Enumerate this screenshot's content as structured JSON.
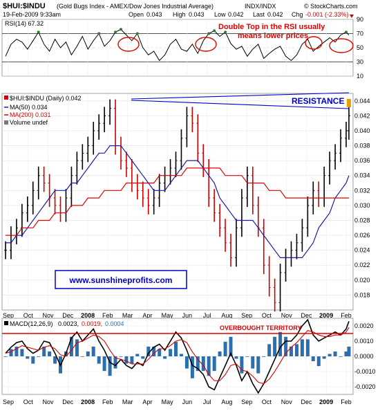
{
  "header": {
    "symbol": "$HUI:$INDU",
    "description": "(Gold Bugs Index - AMEX/Dow Jones Industrial Average)",
    "exchange": "INDX/INDX",
    "date": "19-Feb-2009 9:33am",
    "open_label": "Open",
    "open": "0.043",
    "high_label": "High",
    "high": "0.043",
    "low_label": "Low",
    "low": "0.042",
    "last_label": "Last",
    "last": "0.042",
    "chg_label": "Chg",
    "chg": "-0.001 (-2.33%)",
    "credit": "© StockCharts.com"
  },
  "colors": {
    "price_up": "#000000",
    "price_down": "#cc0000",
    "ma50": "#1a1aa8",
    "ma200": "#dd0000",
    "annotation": "#dd0000",
    "resistance": "#0000cc",
    "macd_hist": "#2a6fb0"
  },
  "rsi_panel": {
    "legend": "RSI(14) 67.32",
    "annotation_line1": "Double Top in the RSI usually",
    "annotation_line2": "means lower prices",
    "y_ticks": [
      "90",
      "70",
      "50",
      "30",
      "10"
    ]
  },
  "price_panel": {
    "legend_title": "$HUI:$INDU (Daily) 0.042",
    "legend_ma50": "MA(50) 0.034",
    "legend_ma200": "MA(200) 0.031",
    "legend_volume": "Volume undef",
    "resistance_label": "RESISTANCE",
    "website": "www.sunshineprofits.com",
    "y_ticks": [
      "0.044",
      "0.042",
      "0.040",
      "0.038",
      "0.036",
      "0.034",
      "0.032",
      "0.030",
      "0.028",
      "0.026",
      "0.024",
      "0.022",
      "0.020",
      "0.018"
    ]
  },
  "macd_panel": {
    "legend_prefix": "MACD(12,26,9)",
    "macd_value": "0.0023,",
    "signal_value": "0.0019,",
    "hist_value": "0.0004",
    "annotation": "OVERBOUGHT TERRITORY",
    "y_ticks": [
      "0.0020",
      "0.0010",
      "0.0000",
      "-0.0010",
      "-0.0020"
    ]
  },
  "x_axis": {
    "labels": [
      "Sep",
      "Oct",
      "Nov",
      "Dec",
      "2008",
      "Feb",
      "Mar",
      "Apr",
      "May",
      "Jun",
      "Jul",
      "Aug",
      "Sep",
      "Oct",
      "Nov",
      "Dec",
      "2009",
      "Feb"
    ]
  },
  "chart_data": [
    {
      "type": "line",
      "title": "RSI(14) 67.32",
      "ylim": [
        10,
        90
      ],
      "x": [
        0,
        8,
        16,
        24,
        32,
        40,
        48,
        56,
        64,
        72,
        80,
        88,
        96,
        104,
        112,
        120,
        128,
        136,
        144,
        152,
        160,
        168,
        176,
        184,
        192,
        200,
        208,
        216,
        224,
        232,
        240,
        248,
        256,
        264,
        272,
        280,
        288,
        296,
        304,
        312,
        320,
        328,
        336,
        344,
        352,
        360,
        368,
        376,
        384,
        392,
        400,
        408,
        416,
        424,
        432,
        440,
        448,
        456,
        464,
        472,
        480,
        488,
        496,
        500
      ],
      "values": [
        38,
        55,
        62,
        58,
        48,
        60,
        72,
        55,
        45,
        62,
        50,
        58,
        40,
        52,
        66,
        48,
        60,
        70,
        52,
        60,
        72,
        76,
        68,
        60,
        70,
        50,
        40,
        45,
        32,
        40,
        55,
        62,
        48,
        45,
        55,
        42,
        60,
        70,
        74,
        66,
        72,
        56,
        48,
        52,
        38,
        48,
        55,
        35,
        42,
        48,
        52,
        38,
        32,
        40,
        55,
        62,
        45,
        52,
        58,
        64,
        58,
        68,
        72,
        68
      ],
      "series": [
        {
          "name": "RSI(14)",
          "values": [
            38,
            55,
            62,
            58,
            48,
            60,
            72,
            55,
            45,
            62,
            50,
            58,
            40,
            52,
            66,
            48,
            60,
            70,
            52,
            60,
            72,
            76,
            68,
            60,
            70,
            50,
            40,
            45,
            32,
            40,
            55,
            62,
            48,
            45,
            55,
            42,
            60,
            70,
            74,
            66,
            72,
            56,
            48,
            52,
            38,
            48,
            55,
            35,
            42,
            48,
            52,
            38,
            32,
            40,
            55,
            62,
            45,
            52,
            58,
            64,
            58,
            68,
            72,
            68
          ]
        }
      ]
    },
    {
      "type": "line",
      "title": "$HUI:$INDU (Daily) 0.042",
      "ylim": [
        0.016,
        0.045
      ],
      "x": [
        0,
        8,
        16,
        24,
        32,
        40,
        48,
        56,
        64,
        72,
        80,
        88,
        96,
        104,
        112,
        120,
        128,
        136,
        144,
        152,
        160,
        168,
        176,
        184,
        192,
        200,
        208,
        216,
        224,
        232,
        240,
        248,
        256,
        264,
        272,
        280,
        288,
        296,
        304,
        312,
        320,
        328,
        336,
        344,
        352,
        360,
        368,
        376,
        384,
        392,
        400,
        408,
        416,
        424,
        432,
        440,
        448,
        456,
        464,
        472,
        480,
        488,
        496,
        500
      ],
      "series": [
        {
          "name": "$HUI:$INDU",
          "values": [
            0.024,
            0.026,
            0.027,
            0.029,
            0.03,
            0.032,
            0.034,
            0.033,
            0.031,
            0.03,
            0.029,
            0.031,
            0.034,
            0.036,
            0.037,
            0.038,
            0.04,
            0.041,
            0.042,
            0.043,
            0.038,
            0.036,
            0.035,
            0.033,
            0.032,
            0.031,
            0.03,
            0.031,
            0.033,
            0.034,
            0.035,
            0.036,
            0.039,
            0.042,
            0.041,
            0.037,
            0.035,
            0.031,
            0.029,
            0.027,
            0.025,
            0.023,
            0.027,
            0.031,
            0.034,
            0.03,
            0.027,
            0.022,
            0.019,
            0.017,
            0.021,
            0.023,
            0.024,
            0.025,
            0.027,
            0.03,
            0.032,
            0.031,
            0.034,
            0.036,
            0.037,
            0.039,
            0.04,
            0.042
          ]
        },
        {
          "name": "MA(50)",
          "values": [
            0.025,
            0.025,
            0.026,
            0.026,
            0.027,
            0.028,
            0.029,
            0.03,
            0.031,
            0.032,
            0.032,
            0.032,
            0.033,
            0.033,
            0.034,
            0.035,
            0.036,
            0.037,
            0.037,
            0.038,
            0.038,
            0.038,
            0.037,
            0.036,
            0.035,
            0.034,
            0.033,
            0.032,
            0.032,
            0.032,
            0.033,
            0.034,
            0.035,
            0.036,
            0.036,
            0.036,
            0.035,
            0.034,
            0.033,
            0.031,
            0.03,
            0.029,
            0.028,
            0.028,
            0.028,
            0.028,
            0.027,
            0.026,
            0.025,
            0.024,
            0.023,
            0.023,
            0.023,
            0.023,
            0.023,
            0.024,
            0.025,
            0.027,
            0.028,
            0.029,
            0.031,
            0.032,
            0.033,
            0.034
          ]
        },
        {
          "name": "MA(200)",
          "values": [
            0.026,
            0.026,
            0.026,
            0.027,
            0.027,
            0.027,
            0.028,
            0.028,
            0.028,
            0.029,
            0.029,
            0.029,
            0.03,
            0.03,
            0.03,
            0.031,
            0.031,
            0.031,
            0.032,
            0.032,
            0.032,
            0.032,
            0.033,
            0.033,
            0.033,
            0.033,
            0.033,
            0.033,
            0.034,
            0.034,
            0.034,
            0.034,
            0.034,
            0.035,
            0.035,
            0.035,
            0.035,
            0.035,
            0.035,
            0.035,
            0.034,
            0.034,
            0.034,
            0.034,
            0.033,
            0.033,
            0.033,
            0.033,
            0.032,
            0.032,
            0.032,
            0.031,
            0.031,
            0.031,
            0.031,
            0.031,
            0.031,
            0.031,
            0.031,
            0.031,
            0.031,
            0.031,
            0.031,
            0.031
          ]
        }
      ]
    },
    {
      "type": "line",
      "title": "MACD(12,26,9)",
      "ylim": [
        -0.0025,
        0.0025
      ],
      "x": [
        0,
        8,
        16,
        24,
        32,
        40,
        48,
        56,
        64,
        72,
        80,
        88,
        96,
        104,
        112,
        120,
        128,
        136,
        144,
        152,
        160,
        168,
        176,
        184,
        192,
        200,
        208,
        216,
        224,
        232,
        240,
        248,
        256,
        264,
        272,
        280,
        288,
        296,
        304,
        312,
        320,
        328,
        336,
        344,
        352,
        360,
        368,
        376,
        384,
        392,
        400,
        408,
        416,
        424,
        432,
        440,
        448,
        456,
        464,
        472,
        480,
        488,
        496,
        500
      ],
      "series": [
        {
          "name": "MACD",
          "values": [
            0.0002,
            0.0006,
            0.0009,
            0.001,
            0.0005,
            0.0002,
            0.0004,
            0.001,
            0.0009,
            0.0002,
            -0.0006,
            0.0002,
            0.0012,
            0.0016,
            0.001,
            0.0014,
            0.0018,
            0.001,
            0.0004,
            -0.0004,
            -0.0006,
            -0.0002,
            -0.0006,
            -0.0008,
            -0.0004,
            -0.0006,
            0.0002,
            0.0006,
            0.0008,
            0.0004,
            0.001,
            0.0016,
            0.0012,
            0.0004,
            -0.0006,
            -0.0008,
            -0.0012,
            -0.002,
            -0.0022,
            -0.0014,
            -0.0006,
            0.0002,
            -0.0006,
            -0.0016,
            -0.001,
            -0.0018,
            -0.0024,
            -0.0018,
            -0.001,
            -0.0002,
            0.0006,
            0.001,
            0.001,
            0.0014,
            0.002,
            0.0024,
            0.0014,
            0.001,
            0.0012,
            0.0014,
            0.0016,
            0.0014,
            0.0018,
            0.0023
          ]
        },
        {
          "name": "Signal",
          "values": [
            0.0002,
            0.0003,
            0.0005,
            0.0007,
            0.0006,
            0.0005,
            0.0004,
            0.0006,
            0.0007,
            0.0005,
            0.0001,
            0.0,
            0.0004,
            0.0009,
            0.001,
            0.0012,
            0.0014,
            0.0013,
            0.001,
            0.0004,
            -0.0001,
            -0.0002,
            -0.0003,
            -0.0005,
            -0.0005,
            -0.0005,
            -0.0002,
            0.0002,
            0.0005,
            0.0005,
            0.0007,
            0.001,
            0.0011,
            0.0009,
            0.0003,
            -0.0002,
            -0.0006,
            -0.0012,
            -0.0016,
            -0.0016,
            -0.0012,
            -0.0006,
            -0.0005,
            -0.0009,
            -0.001,
            -0.0013,
            -0.0017,
            -0.0018,
            -0.0015,
            -0.001,
            -0.0004,
            0.0002,
            0.0006,
            0.0009,
            0.0013,
            0.0017,
            0.0016,
            0.0014,
            0.0013,
            0.0013,
            0.0014,
            0.0014,
            0.0016,
            0.0019
          ]
        }
      ]
    }
  ]
}
